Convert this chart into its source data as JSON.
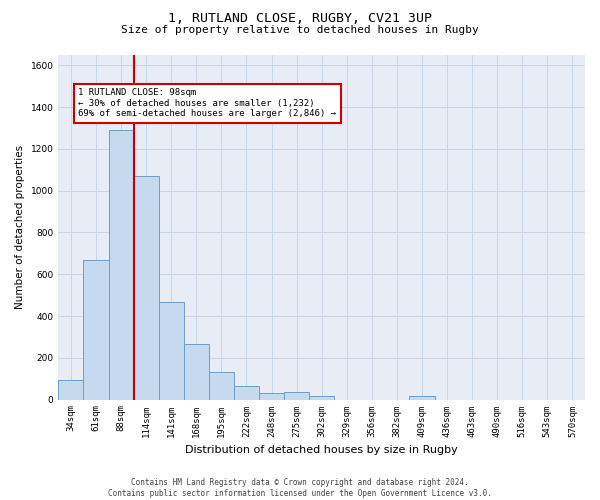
{
  "title_line1": "1, RUTLAND CLOSE, RUGBY, CV21 3UP",
  "title_line2": "Size of property relative to detached houses in Rugby",
  "xlabel": "Distribution of detached houses by size in Rugby",
  "ylabel": "Number of detached properties",
  "footnote": "Contains HM Land Registry data © Crown copyright and database right 2024.\nContains public sector information licensed under the Open Government Licence v3.0.",
  "bin_labels": [
    "34sqm",
    "61sqm",
    "88sqm",
    "114sqm",
    "141sqm",
    "168sqm",
    "195sqm",
    "222sqm",
    "248sqm",
    "275sqm",
    "302sqm",
    "329sqm",
    "356sqm",
    "382sqm",
    "409sqm",
    "436sqm",
    "463sqm",
    "490sqm",
    "516sqm",
    "543sqm",
    "570sqm"
  ],
  "bar_heights": [
    95,
    670,
    1290,
    1070,
    465,
    265,
    130,
    65,
    30,
    35,
    15,
    0,
    0,
    0,
    15,
    0,
    0,
    0,
    0,
    0,
    0
  ],
  "bar_color": "#c5d9ef",
  "bar_edge_color": "#6b9fc8",
  "vline_bin_index": 2,
  "vline_color": "#cc0000",
  "annotation_text": "1 RUTLAND CLOSE: 98sqm\n← 30% of detached houses are smaller (1,232)\n69% of semi-detached houses are larger (2,846) →",
  "annotation_box_color": "#cc0000",
  "ylim": [
    0,
    1650
  ],
  "yticks": [
    0,
    200,
    400,
    600,
    800,
    1000,
    1200,
    1400,
    1600
  ],
  "grid_color": "#c8d4e8",
  "bg_color": "#e8edf5",
  "fig_bg_color": "#ffffff",
  "title1_fontsize": 9.5,
  "title2_fontsize": 8,
  "ylabel_fontsize": 7.5,
  "xlabel_fontsize": 8,
  "tick_fontsize": 6.5,
  "annot_fontsize": 6.5,
  "footnote_fontsize": 5.5
}
